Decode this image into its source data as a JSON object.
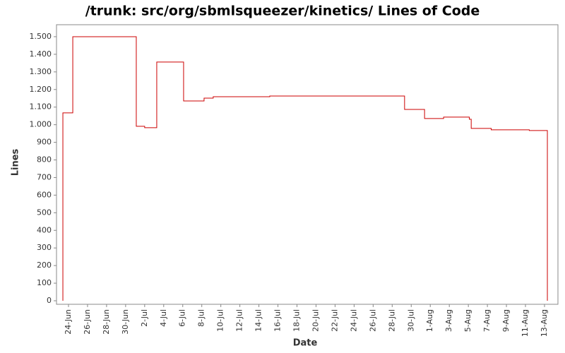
{
  "chart_data": {
    "type": "step",
    "title": "/trunk: src/org/sbmlsqueezer/kinetics/ Lines of Code",
    "x_label": "Date",
    "y_label": "Lines",
    "color": "#cc0000",
    "x": [
      -0.59,
      0.45,
      7.12,
      8.0,
      9.27,
      12.09,
      14.24,
      15.2,
      21.14,
      35.3,
      37.4,
      39.4,
      42.1,
      42.3,
      44.4,
      48.4,
      50.3
    ],
    "values": [
      1067,
      1500,
      991,
      983,
      1356,
      1135,
      1151,
      1159,
      1163,
      1087,
      1035,
      1043,
      1031,
      979,
      971,
      967,
      0
    ],
    "xlim": [
      -1.26,
      51.41
    ],
    "xticks": [
      {
        "value": 0,
        "label": "24-Jun"
      },
      {
        "value": 2,
        "label": "26-Jun"
      },
      {
        "value": 4,
        "label": "28-Jun"
      },
      {
        "value": 6,
        "label": "30-Jun"
      },
      {
        "value": 8,
        "label": "2-Jul"
      },
      {
        "value": 10,
        "label": "4-Jul"
      },
      {
        "value": 12,
        "label": "6-Jul"
      },
      {
        "value": 14,
        "label": "8-Jul"
      },
      {
        "value": 16,
        "label": "10-Jul"
      },
      {
        "value": 18,
        "label": "12-Jul"
      },
      {
        "value": 20,
        "label": "14-Jul"
      },
      {
        "value": 22,
        "label": "16-Jul"
      },
      {
        "value": 24,
        "label": "18-Jul"
      },
      {
        "value": 26,
        "label": "20-Jul"
      },
      {
        "value": 28,
        "label": "22-Jul"
      },
      {
        "value": 30,
        "label": "24-Jul"
      },
      {
        "value": 32,
        "label": "26-Jul"
      },
      {
        "value": 34,
        "label": "28-Jul"
      },
      {
        "value": 36,
        "label": "30-Jul"
      },
      {
        "value": 38,
        "label": "1-Aug"
      },
      {
        "value": 40,
        "label": "3-Aug"
      },
      {
        "value": 42,
        "label": "5-Aug"
      },
      {
        "value": 44,
        "label": "7-Aug"
      },
      {
        "value": 46,
        "label": "9-Aug"
      },
      {
        "value": 48,
        "label": "11-Aug"
      },
      {
        "value": 50,
        "label": "13-Aug"
      }
    ],
    "ylim": [
      -20,
      1568
    ],
    "yticks": [
      0,
      100,
      200,
      300,
      400,
      500,
      600,
      700,
      800,
      900,
      {
        "value": 1000,
        "label": "1.000"
      },
      {
        "value": 1100,
        "label": "1.100"
      },
      {
        "value": 1200,
        "label": "1.200"
      },
      {
        "value": 1300,
        "label": "1.300"
      },
      {
        "value": 1400,
        "label": "1.400"
      },
      {
        "value": 1500,
        "label": "1.500"
      }
    ]
  }
}
